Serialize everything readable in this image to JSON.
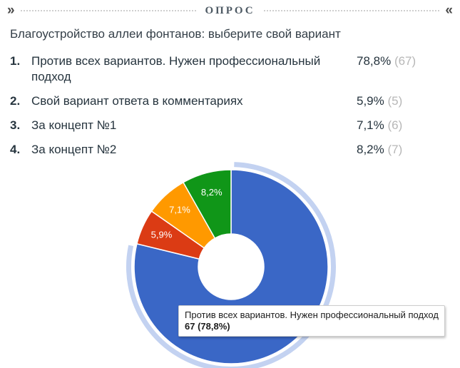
{
  "header": {
    "title": "ОПРОС",
    "left_icon": "»",
    "right_icon": "«"
  },
  "poll": {
    "question": "Благоустройство аллеи фонтанов: выберите свой вариант",
    "options": [
      {
        "num": "1.",
        "label": "Против всех вариантов. Нужен профессиональный подход",
        "percent": "78,8%",
        "count_display": "(67)"
      },
      {
        "num": "2.",
        "label": "Свой вариант ответа в комментариях",
        "percent": "5,9%",
        "count_display": "(5)"
      },
      {
        "num": "3.",
        "label": "За концепт №1",
        "percent": "7,1%",
        "count_display": "(6)"
      },
      {
        "num": "4.",
        "label": "За концепт №2",
        "percent": "8,2%",
        "count_display": "(7)"
      }
    ]
  },
  "chart_data": {
    "type": "pie",
    "donut": true,
    "pie_hole_ratio": 0.34,
    "start_angle_deg": 0,
    "direction": "clockwise",
    "legend": "none",
    "highlight_ring_color": "#C3D2F1",
    "slices": [
      {
        "label": "Против всех вариантов. Нужен профессиональный подход",
        "value": 78.8,
        "count": 67,
        "percent_label": "78,8%",
        "color": "#3A67C6",
        "selected": true
      },
      {
        "label": "Свой вариант ответа в комментариях",
        "value": 5.9,
        "count": 5,
        "percent_label": "5,9%",
        "color": "#DB3B14",
        "selected": false
      },
      {
        "label": "За концепт №1",
        "value": 7.1,
        "count": 6,
        "percent_label": "7,1%",
        "color": "#FF9900",
        "selected": false
      },
      {
        "label": "За концепт №2",
        "value": 8.2,
        "count": 7,
        "percent_label": "8,2%",
        "color": "#109618",
        "selected": false
      }
    ]
  },
  "tooltip": {
    "line1": "Против всех вариантов. Нужен профессиональный подход",
    "line2": "67 (78,8%)"
  }
}
